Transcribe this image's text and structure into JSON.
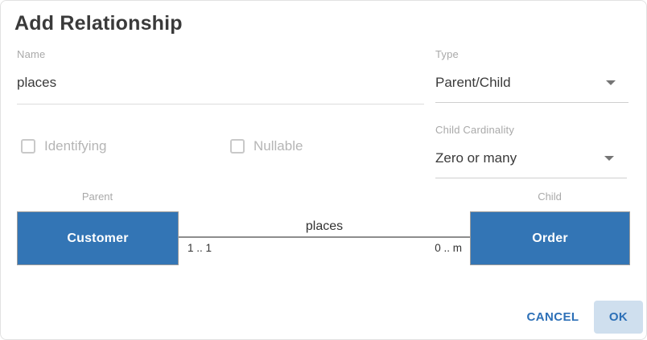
{
  "dialog": {
    "title": "Add Relationship",
    "fields": {
      "name": {
        "label": "Name",
        "value": "places"
      },
      "type": {
        "label": "Type",
        "value": "Parent/Child"
      },
      "child_cardinality": {
        "label": "Child Cardinality",
        "value": "Zero or many"
      }
    },
    "checkboxes": [
      {
        "label": "Identifying",
        "checked": false,
        "disabled": true
      },
      {
        "label": "Nullable",
        "checked": false,
        "disabled": true
      }
    ],
    "diagram": {
      "parent_role_label": "Parent",
      "child_role_label": "Child",
      "parent_entity": "Customer",
      "child_entity": "Order",
      "relationship_label": "places",
      "parent_cardinality": "1 .. 1",
      "child_cardinality": "0 .. m"
    },
    "actions": {
      "cancel_label": "CANCEL",
      "ok_label": "OK"
    },
    "colors": {
      "entity_fill": "#3375b5",
      "accent_blue": "#2d70b7",
      "ok_button_bg": "#cfdfee",
      "label_gray": "#a9a9a9"
    }
  }
}
